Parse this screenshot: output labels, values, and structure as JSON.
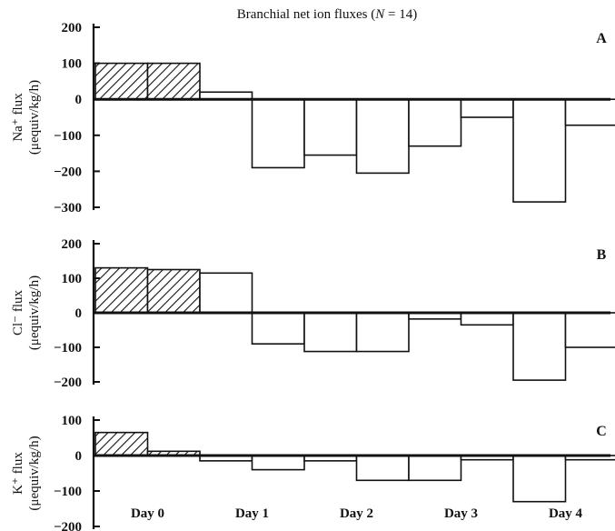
{
  "title": {
    "prefix": "Branchial net ion fluxes (",
    "n_symbol": "N",
    "suffix": " = 14)"
  },
  "chart_data": [
    {
      "type": "bar",
      "panel": "A",
      "ylabel_ion": "Na⁺ flux",
      "ylabel_unit": "(μequiv/kg/h)",
      "ylim": [
        -300,
        200
      ],
      "yticks": [
        200,
        100,
        0,
        -100,
        -200,
        -300
      ],
      "bars": [
        {
          "x0": 0,
          "x1": 1,
          "value": 100,
          "hatched": true
        },
        {
          "x0": 1,
          "x1": 2,
          "value": 100,
          "hatched": true
        },
        {
          "x0": 2,
          "x1": 3,
          "value": 20,
          "hatched": false
        },
        {
          "x0": 3,
          "x1": 4,
          "value": -190,
          "hatched": false
        },
        {
          "x0": 4,
          "x1": 5,
          "value": -155,
          "hatched": false
        },
        {
          "x0": 5,
          "x1": 6,
          "value": -205,
          "hatched": false
        },
        {
          "x0": 6,
          "x1": 7,
          "value": -130,
          "hatched": false
        },
        {
          "x0": 7,
          "x1": 8,
          "value": -50,
          "hatched": false
        },
        {
          "x0": 8,
          "x1": 9,
          "value": -285,
          "hatched": false
        },
        {
          "x0": 9,
          "x1": 10,
          "value": -72,
          "hatched": false
        }
      ]
    },
    {
      "type": "bar",
      "panel": "B",
      "ylabel_ion": "Cl⁻ flux",
      "ylabel_unit": "(μequiv/kg/h)",
      "ylim": [
        -200,
        200
      ],
      "yticks": [
        200,
        100,
        0,
        -100,
        -200
      ],
      "bars": [
        {
          "x0": 0,
          "x1": 1,
          "value": 130,
          "hatched": true
        },
        {
          "x0": 1,
          "x1": 2,
          "value": 125,
          "hatched": true
        },
        {
          "x0": 2,
          "x1": 3,
          "value": 115,
          "hatched": false
        },
        {
          "x0": 3,
          "x1": 4,
          "value": -90,
          "hatched": false
        },
        {
          "x0": 4,
          "x1": 5,
          "value": -112,
          "hatched": false
        },
        {
          "x0": 5,
          "x1": 6,
          "value": -112,
          "hatched": false
        },
        {
          "x0": 6,
          "x1": 7,
          "value": -18,
          "hatched": false
        },
        {
          "x0": 7,
          "x1": 8,
          "value": -35,
          "hatched": false
        },
        {
          "x0": 8,
          "x1": 9,
          "value": -195,
          "hatched": false
        },
        {
          "x0": 9,
          "x1": 10,
          "value": -100,
          "hatched": false
        }
      ]
    },
    {
      "type": "bar",
      "panel": "C",
      "ylabel_ion": "K⁺ flux",
      "ylabel_unit": "(μequiv/kg/h)",
      "ylim": [
        -200,
        100
      ],
      "yticks": [
        100,
        0,
        -100,
        -200
      ],
      "xticks": [
        "Day 0",
        "Day 1",
        "Day 2",
        "Day 3",
        "Day 4"
      ],
      "bars": [
        {
          "x0": 0,
          "x1": 1,
          "value": 65,
          "hatched": true
        },
        {
          "x0": 1,
          "x1": 2,
          "value": 12,
          "hatched": true
        },
        {
          "x0": 2,
          "x1": 3,
          "value": -15,
          "hatched": false
        },
        {
          "x0": 3,
          "x1": 4,
          "value": -40,
          "hatched": false
        },
        {
          "x0": 4,
          "x1": 5,
          "value": -15,
          "hatched": false
        },
        {
          "x0": 5,
          "x1": 6,
          "value": -70,
          "hatched": false
        },
        {
          "x0": 6,
          "x1": 7,
          "value": -70,
          "hatched": false
        },
        {
          "x0": 7,
          "x1": 8,
          "value": -12,
          "hatched": false
        },
        {
          "x0": 8,
          "x1": 9,
          "value": -130,
          "hatched": false
        },
        {
          "x0": 9,
          "x1": 10,
          "value": -12,
          "hatched": false
        }
      ]
    }
  ]
}
